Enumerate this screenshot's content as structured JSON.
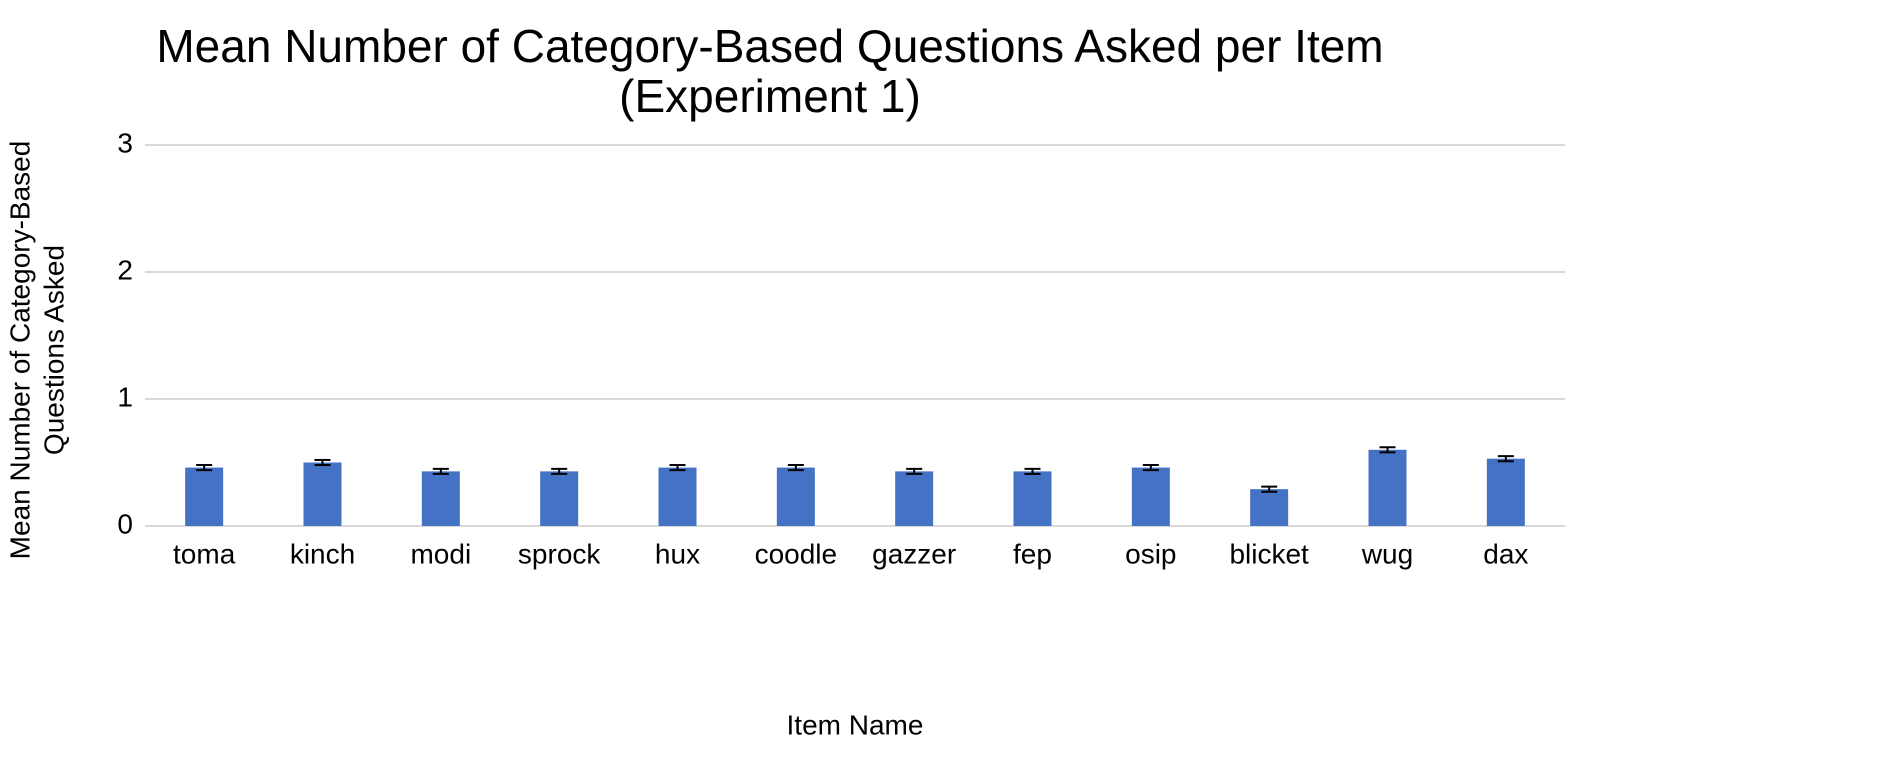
{
  "chart_data": {
    "type": "bar",
    "title": [
      "Mean Number of Category-Based Questions Asked per Item",
      "(Experiment 1)"
    ],
    "x_label": "Item Name",
    "y_label": [
      "Mean Number of Category-Based",
      "Questions Asked"
    ],
    "categories": [
      "toma",
      "kinch",
      "modi",
      "sprock",
      "hux",
      "coodle",
      "gazzer",
      "fep",
      "osip",
      "blicket",
      "wug",
      "dax"
    ],
    "values": [
      0.46,
      0.5,
      0.43,
      0.43,
      0.46,
      0.46,
      0.43,
      0.43,
      0.46,
      0.29,
      0.6,
      0.53
    ],
    "errors": [
      0.02,
      0.02,
      0.02,
      0.02,
      0.02,
      0.02,
      0.02,
      0.02,
      0.02,
      0.02,
      0.02,
      0.02
    ],
    "color": "#4472c4",
    "ylim": [
      0,
      3
    ],
    "yticks": [
      0,
      1,
      2,
      3
    ],
    "grid": true
  }
}
